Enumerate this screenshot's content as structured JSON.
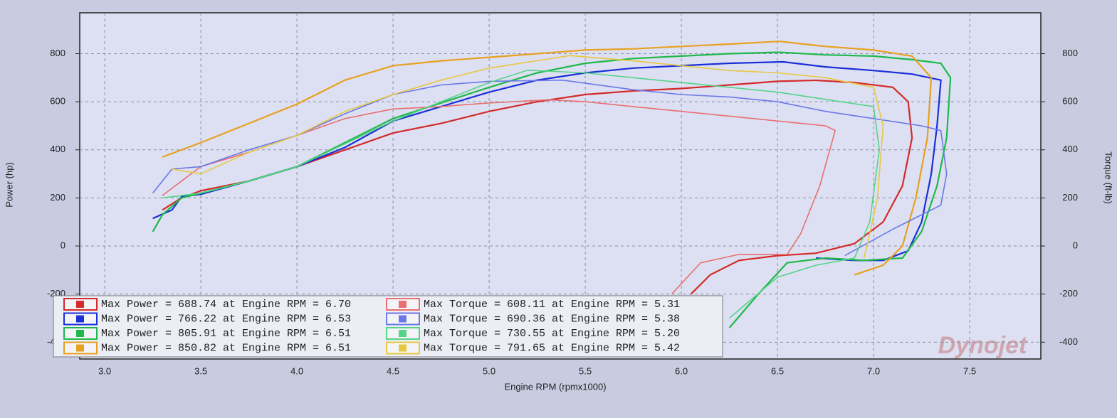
{
  "chart_data": {
    "type": "line",
    "x_label": "Engine RPM (rpmx1000)",
    "y_label": "Power (hp)",
    "y2_label": "Torque (ft-lb)",
    "watermark": "Dynojet",
    "xlim": [
      2.87,
      7.87
    ],
    "xticks": [
      {
        "value": 3,
        "label": "3.0"
      },
      3.5,
      {
        "value": 4,
        "label": "4.0"
      },
      4.5,
      {
        "value": 5,
        "label": "5.0"
      },
      5.5,
      {
        "value": 6,
        "label": "6.0"
      },
      6.5,
      {
        "value": 7,
        "label": "7.0"
      },
      7.5
    ],
    "ylim": [
      -470,
      970
    ],
    "yticks": [
      800,
      600,
      400,
      200,
      0,
      -200,
      -400
    ],
    "y2lim": [
      -470,
      970
    ],
    "y2ticks": [
      800,
      600,
      400,
      200,
      0,
      -200,
      -400
    ],
    "grid": true,
    "legend": "lower left",
    "series": [
      {
        "name": "Max Power = 688.74 at Engine RPM = 6.70",
        "color": "#d42a2a",
        "x": [
          3.3,
          3.4,
          3.5,
          3.75,
          4.0,
          4.25,
          4.5,
          4.75,
          5.0,
          5.25,
          5.5,
          5.75,
          6.0,
          6.25,
          6.5,
          6.7,
          6.9,
          7.1,
          7.18,
          7.2,
          7.15,
          7.05,
          6.9,
          6.7,
          6.5,
          6.3,
          6.15,
          6.05
        ],
        "values": [
          150,
          200,
          230,
          270,
          330,
          400,
          470,
          510,
          560,
          600,
          630,
          645,
          655,
          670,
          685,
          689,
          680,
          660,
          600,
          450,
          250,
          100,
          10,
          -30,
          -40,
          -60,
          -120,
          -200
        ]
      },
      {
        "name": "Max Power = 766.22 at Engine RPM = 6.53",
        "color": "#1a2fd8",
        "x": [
          3.25,
          3.35,
          3.4,
          3.5,
          3.75,
          4.0,
          4.25,
          4.5,
          4.75,
          5.0,
          5.25,
          5.5,
          5.75,
          6.0,
          6.25,
          6.53,
          6.75,
          7.0,
          7.2,
          7.35,
          7.33,
          7.3,
          7.25,
          7.18,
          7.05,
          6.9,
          6.7
        ],
        "values": [
          115,
          150,
          205,
          215,
          270,
          330,
          410,
          520,
          580,
          640,
          690,
          720,
          740,
          750,
          760,
          766,
          745,
          730,
          715,
          690,
          500,
          300,
          100,
          -20,
          -60,
          -60,
          -50
        ]
      },
      {
        "name": "Max Power = 805.91 at Engine RPM = 6.51",
        "color": "#1fb84a",
        "x": [
          3.25,
          3.3,
          3.4,
          3.75,
          4.0,
          4.5,
          5.0,
          5.25,
          5.5,
          5.75,
          6.0,
          6.25,
          6.51,
          6.75,
          7.0,
          7.2,
          7.35,
          7.4,
          7.38,
          7.33,
          7.25,
          7.15,
          6.95,
          6.75,
          6.55,
          6.4,
          6.25
        ],
        "values": [
          60,
          130,
          200,
          270,
          330,
          530,
          660,
          720,
          760,
          780,
          790,
          800,
          806,
          795,
          790,
          775,
          760,
          700,
          450,
          250,
          60,
          -50,
          -60,
          -50,
          -70,
          -200,
          -340
        ]
      },
      {
        "name": "Max Power = 850.82 at Engine RPM = 6.51",
        "color": "#e8a020",
        "x": [
          3.3,
          3.5,
          3.75,
          4.0,
          4.25,
          4.5,
          4.75,
          5.0,
          5.25,
          5.5,
          5.75,
          6.0,
          6.25,
          6.51,
          6.75,
          7.0,
          7.2,
          7.3,
          7.28,
          7.22,
          7.15,
          7.05,
          6.9
        ],
        "values": [
          370,
          430,
          510,
          590,
          690,
          750,
          770,
          785,
          800,
          815,
          820,
          830,
          840,
          851,
          830,
          815,
          790,
          700,
          450,
          200,
          0,
          -80,
          -120
        ]
      },
      {
        "name": "Max Torque = 608.11 at Engine RPM = 5.31",
        "color": "#e87070",
        "axis": "y2",
        "x": [
          3.3,
          3.4,
          3.5,
          3.75,
          4.0,
          4.25,
          4.5,
          4.75,
          5.0,
          5.31,
          5.5,
          5.75,
          6.0,
          6.25,
          6.5,
          6.75,
          6.8,
          6.72,
          6.62,
          6.55,
          6.3,
          6.1,
          5.95
        ],
        "values": [
          210,
          270,
          330,
          390,
          460,
          530,
          570,
          580,
          595,
          608,
          600,
          580,
          560,
          540,
          520,
          500,
          480,
          250,
          50,
          -35,
          -35,
          -70,
          -200
        ]
      },
      {
        "name": "Max Torque = 690.36 at Engine RPM = 5.38",
        "color": "#6a78e8",
        "axis": "y2",
        "x": [
          3.25,
          3.35,
          3.5,
          3.75,
          4.0,
          4.25,
          4.5,
          4.75,
          5.0,
          5.38,
          5.75,
          6.0,
          6.25,
          6.5,
          6.75,
          7.0,
          7.25,
          7.35,
          7.38,
          7.35,
          7.1,
          6.85
        ],
        "values": [
          220,
          320,
          330,
          400,
          460,
          550,
          630,
          670,
          685,
          690,
          650,
          630,
          620,
          600,
          560,
          530,
          500,
          480,
          300,
          170,
          70,
          -40
        ]
      },
      {
        "name": "Max Torque = 730.55 at Engine RPM = 5.20",
        "color": "#55d488",
        "axis": "y2",
        "x": [
          3.3,
          3.5,
          3.75,
          4.0,
          4.5,
          4.75,
          5.0,
          5.2,
          5.5,
          5.75,
          6.0,
          6.25,
          6.5,
          6.75,
          7.0,
          7.03,
          6.98,
          6.9,
          6.7,
          6.5,
          6.25
        ],
        "values": [
          200,
          220,
          270,
          330,
          520,
          600,
          680,
          731,
          720,
          700,
          680,
          660,
          640,
          610,
          580,
          400,
          100,
          -50,
          -80,
          -130,
          -300
        ]
      },
      {
        "name": "Max Torque = 791.65 at Engine RPM = 5.42",
        "color": "#e8c840",
        "axis": "y2",
        "x": [
          3.35,
          3.5,
          3.75,
          4.0,
          4.25,
          4.5,
          4.75,
          5.0,
          5.42,
          5.75,
          6.0,
          6.25,
          6.5,
          6.75,
          7.0,
          7.05,
          7.02,
          6.98,
          6.95
        ],
        "values": [
          320,
          300,
          390,
          460,
          560,
          630,
          690,
          740,
          792,
          770,
          750,
          730,
          720,
          700,
          660,
          500,
          200,
          50,
          -50
        ]
      }
    ]
  }
}
